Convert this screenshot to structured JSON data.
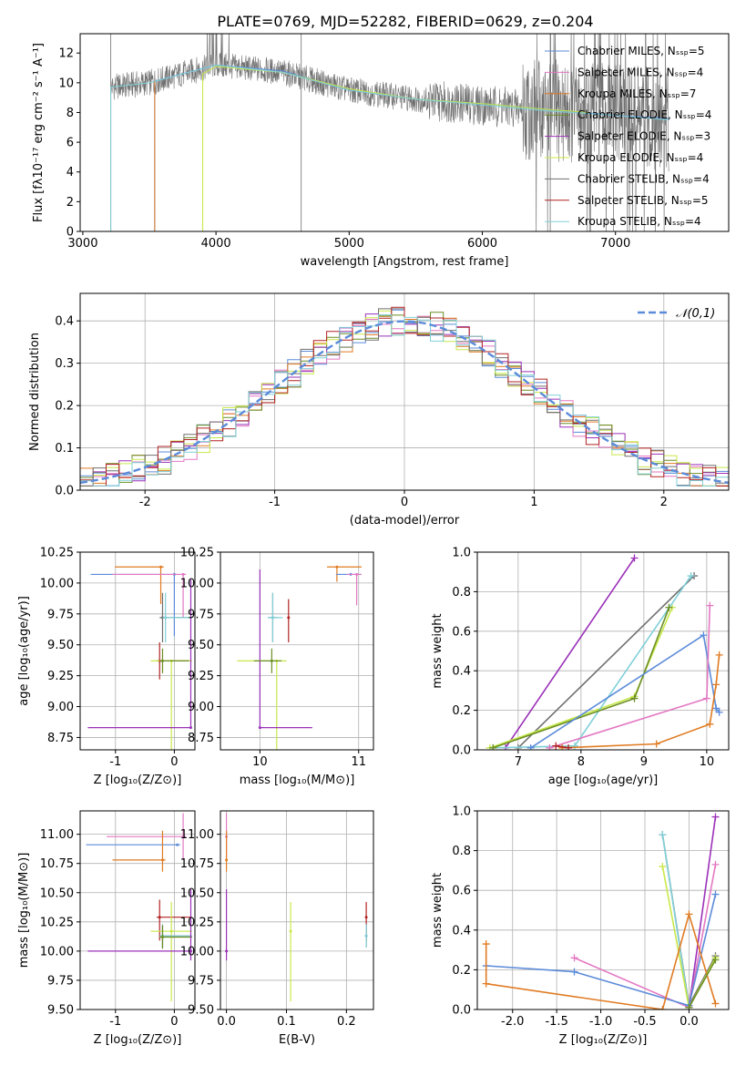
{
  "figure": {
    "title": "PLATE=0769, MJD=52282, FIBERID=0629, z=0.204"
  },
  "colors": {
    "Chabrier MILES": "#5b8bd9",
    "Salpeter MILES": "#e377c2",
    "Kroupa MILES": "#e07b22",
    "Chabrier ELODIE": "#6b8e23",
    "Salpeter ELODIE": "#9b30b8",
    "Kroupa ELODIE": "#c8e84a",
    "Chabrier STELIB": "#707070",
    "Salpeter STELIB": "#b22222",
    "Kroupa STELIB": "#80d0d8",
    "normal_fit": "#5b8bd9",
    "grid": "#b0b0b0"
  },
  "chart_data": [
    {
      "id": "spectrum",
      "type": "line",
      "xlabel": "wavelength [Angstrom, rest frame]",
      "ylabel": "Flux [fλ10⁻¹⁷ erg cm⁻² s⁻¹ A⁻¹]",
      "xlim": [
        2980,
        7850
      ],
      "ylim": [
        0,
        13.3
      ],
      "xticks": [
        3000,
        4000,
        5000,
        6000,
        7000
      ],
      "yticks": [
        0,
        2,
        4,
        6,
        8,
        10,
        12
      ],
      "grid": false,
      "legend_position": "top-right",
      "legend": [
        "Chabrier MILES, Nₛₛₚ=5",
        "Salpeter MILES, Nₛₛₚ=4",
        "Kroupa MILES, Nₛₛₚ=7",
        "Chabrier ELODIE, Nₛₛₚ=4",
        "Salpeter ELODIE, Nₛₛₚ=3",
        "Kroupa ELODIE, Nₛₛₚ=4",
        "Chabrier STELIB, Nₛₛₚ=4",
        "Salpeter STELIB, Nₛₛₚ=5",
        "Kroupa STELIB, Nₛₛₚ=4"
      ],
      "series": [
        {
          "name": "Chabrier MILES",
          "x": [
            3540,
            4000,
            4500,
            5000,
            5500,
            6000,
            6500,
            7000,
            7400
          ],
          "y": [
            10.1,
            11.2,
            10.8,
            9.5,
            8.9,
            8.6,
            8.2,
            7.8,
            7.6
          ]
        },
        {
          "name": "Kroupa ELODIE",
          "x": [
            3900,
            4000,
            4500,
            5000,
            5500,
            6000,
            6500,
            6800
          ],
          "y": [
            10.6,
            11.1,
            10.7,
            9.6,
            8.9,
            8.6,
            8.2,
            8.0
          ]
        },
        {
          "name": "Chabrier STELIB",
          "x": [
            3210,
            3500,
            4000,
            4500,
            5000,
            5500,
            6000,
            6500,
            7000,
            7400
          ],
          "y": [
            9.7,
            10.0,
            11.2,
            10.7,
            9.5,
            8.9,
            8.5,
            8.1,
            7.8,
            7.5
          ]
        }
      ]
    },
    {
      "id": "residuals",
      "type": "line",
      "xlabel": "(data-model)/error",
      "ylabel": "Normed distribution",
      "xlim": [
        -2.5,
        2.5
      ],
      "ylim": [
        0,
        0.465
      ],
      "xticks": [
        -2,
        -1,
        0,
        1,
        2
      ],
      "yticks": [
        0.0,
        0.1,
        0.2,
        0.3,
        0.4
      ],
      "grid": true,
      "legend_position": "top-right",
      "legend": [
        "𝒩(0,1)"
      ],
      "normal_curve": {
        "mean": 0,
        "sigma": 1
      }
    },
    {
      "id": "age_vs_Z",
      "type": "scatter",
      "xlabel": "Z [log₁₀(Z/Z⊙)]",
      "ylabel": "age  [log₁₀(age/yr)]",
      "xlim": [
        -1.6,
        0.35
      ],
      "ylim": [
        8.65,
        10.25
      ],
      "xticks": [
        -1,
        0
      ],
      "yticks": [
        8.75,
        9.0,
        9.25,
        9.5,
        9.75,
        10.0,
        10.25
      ],
      "grid": true,
      "points": [
        {
          "name": "Kroupa MILES",
          "x": -0.23,
          "y": 10.13,
          "xerr": [
            0.78,
            0.05
          ],
          "yerr": [
            0.3,
            0.0
          ]
        },
        {
          "name": "Chabrier MILES",
          "x": 0.0,
          "y": 10.07,
          "xerr": [
            1.42,
            0.05
          ],
          "yerr": [
            0.5,
            0.0
          ]
        },
        {
          "name": "Salpeter MILES",
          "x": 0.15,
          "y": 10.07,
          "xerr": [
            1.2,
            0.05
          ],
          "yerr": [
            0.35,
            0.0
          ]
        },
        {
          "name": "Chabrier STELIB",
          "x": -0.2,
          "y": 9.72,
          "xerr": [
            0.05,
            0.45
          ],
          "yerr": [
            0.2,
            0.2
          ]
        },
        {
          "name": "Kroupa STELIB",
          "x": -0.15,
          "y": 9.72,
          "xerr": [
            0.05,
            0.45
          ],
          "yerr": [
            0.2,
            0.2
          ]
        },
        {
          "name": "Salpeter STELIB",
          "x": -0.25,
          "y": 9.37,
          "xerr": [
            0.05,
            0.5
          ],
          "yerr": [
            0.15,
            0.15
          ]
        },
        {
          "name": "Kroupa ELODIE",
          "x": -0.05,
          "y": 9.37,
          "xerr": [
            0.35,
            0.35
          ],
          "yerr": [
            0.75,
            0.0
          ]
        },
        {
          "name": "Salpeter ELODIE",
          "x": 0.28,
          "y": 8.83,
          "xerr": [
            1.75,
            0.0
          ],
          "yerr": [
            0.0,
            1.2
          ]
        },
        {
          "name": "Chabrier ELODIE",
          "x": -0.2,
          "y": 9.37,
          "xerr": [
            0.05,
            0.45
          ],
          "yerr": [
            0.1,
            0.1
          ]
        }
      ]
    },
    {
      "id": "age_vs_mass",
      "type": "scatter",
      "xlabel": "mass [log₁₀(M/M⊙)]",
      "ylabel": "",
      "xlim": [
        9.6,
        11.15
      ],
      "ylim": [
        8.65,
        10.25
      ],
      "xticks": [
        10,
        11
      ],
      "yticks": [
        8.75,
        9.0,
        9.25,
        9.5,
        9.75,
        10.0,
        10.25
      ],
      "grid": true,
      "points": [
        {
          "name": "Kroupa MILES",
          "x": 10.78,
          "y": 10.13,
          "xerr": [
            0.1,
            0.25
          ],
          "yerr": [
            0.12,
            0.0
          ]
        },
        {
          "name": "Chabrier MILES",
          "x": 10.92,
          "y": 10.07,
          "xerr": [
            0.15,
            0.1
          ],
          "yerr": [
            0.0,
            0.0
          ]
        },
        {
          "name": "Salpeter MILES",
          "x": 10.98,
          "y": 10.07,
          "xerr": [
            0.1,
            0.05
          ],
          "yerr": [
            0.25,
            0.0
          ]
        },
        {
          "name": "Chabrier STELIB",
          "x": 10.13,
          "y": 9.72,
          "xerr": [
            0.05,
            0.05
          ],
          "yerr": [
            0.2,
            0.2
          ]
        },
        {
          "name": "Kroupa STELIB",
          "x": 10.13,
          "y": 9.72,
          "xerr": [
            0.05,
            0.1
          ],
          "yerr": [
            0.2,
            0.2
          ]
        },
        {
          "name": "Salpeter STELIB",
          "x": 10.29,
          "y": 9.72,
          "xerr": [
            0.0,
            0.0
          ],
          "yerr": [
            0.2,
            0.15
          ]
        },
        {
          "name": "Kroupa ELODIE",
          "x": 10.17,
          "y": 9.37,
          "xerr": [
            0.4,
            0.1
          ],
          "yerr": [
            0.75,
            0.0
          ]
        },
        {
          "name": "Salpeter ELODIE",
          "x": 10.0,
          "y": 8.83,
          "xerr": [
            0.0,
            0.53
          ],
          "yerr": [
            0.0,
            1.28
          ]
        },
        {
          "name": "Chabrier ELODIE",
          "x": 10.12,
          "y": 9.37,
          "xerr": [
            0.18,
            0.1
          ],
          "yerr": [
            0.1,
            0.1
          ]
        }
      ]
    },
    {
      "id": "weight_vs_age",
      "type": "line",
      "xlabel": "age  [log₁₀(age/yr)]",
      "ylabel": "mass weight",
      "xlim": [
        6.35,
        10.35
      ],
      "ylim": [
        0.0,
        1.0
      ],
      "xticks": [
        7,
        8,
        9,
        10
      ],
      "yticks": [
        0.0,
        0.2,
        0.4,
        0.6,
        0.8,
        1.0
      ],
      "grid": true,
      "series": [
        {
          "name": "Salpeter ELODIE",
          "x": [
            6.8,
            8.85
          ],
          "y": [
            0.01,
            0.97
          ]
        },
        {
          "name": "Chabrier STELIB",
          "x": [
            7.0,
            9.8
          ],
          "y": [
            0.01,
            0.88
          ]
        },
        {
          "name": "Kroupa ELODIE",
          "x": [
            6.55,
            8.85,
            9.45
          ],
          "y": [
            0.01,
            0.27,
            0.72
          ]
        },
        {
          "name": "Kroupa STELIB",
          "x": [
            6.6,
            7.9,
            9.75
          ],
          "y": [
            0.01,
            0.02,
            0.88
          ]
        },
        {
          "name": "Chabrier ELODIE",
          "x": [
            6.6,
            8.85,
            9.4
          ],
          "y": [
            0.01,
            0.26,
            0.72
          ]
        },
        {
          "name": "Chabrier MILES",
          "x": [
            7.2,
            9.95,
            10.15,
            10.2
          ],
          "y": [
            0.01,
            0.58,
            0.21,
            0.19
          ]
        },
        {
          "name": "Salpeter MILES",
          "x": [
            7.5,
            10.0,
            10.05
          ],
          "y": [
            0.01,
            0.26,
            0.73
          ]
        },
        {
          "name": "Kroupa MILES",
          "x": [
            7.7,
            9.2,
            10.05,
            10.15,
            10.2
          ],
          "y": [
            0.01,
            0.03,
            0.13,
            0.33,
            0.48
          ]
        },
        {
          "name": "Salpeter STELIB",
          "x": [
            7.6,
            7.8
          ],
          "y": [
            0.02,
            0.01
          ]
        }
      ]
    },
    {
      "id": "mass_vs_Z",
      "type": "scatter",
      "xlabel": "Z [log₁₀(Z/Z⊙)]",
      "ylabel": "mass [log₁₀(M/M⊙)]",
      "xlim": [
        -1.6,
        0.35
      ],
      "ylim": [
        9.5,
        11.2
      ],
      "xticks": [
        -1,
        0
      ],
      "yticks": [
        9.5,
        9.75,
        10.0,
        10.25,
        10.5,
        10.75,
        11.0
      ],
      "grid": true,
      "points": [
        {
          "name": "Salpeter MILES",
          "x": 0.15,
          "y": 10.98,
          "xerr": [
            1.3,
            0.05
          ],
          "yerr": [
            0.2,
            0.2
          ]
        },
        {
          "name": "Chabrier MILES",
          "x": 0.05,
          "y": 10.91,
          "xerr": [
            1.55,
            0.05
          ],
          "yerr": [
            0.0,
            0.0
          ]
        },
        {
          "name": "Kroupa MILES",
          "x": -0.2,
          "y": 10.78,
          "xerr": [
            0.85,
            0.05
          ],
          "yerr": [
            0.1,
            0.25
          ]
        },
        {
          "name": "Salpeter STELIB",
          "x": -0.25,
          "y": 10.29,
          "xerr": [
            0.05,
            0.55
          ],
          "yerr": [
            0.2,
            0.15
          ]
        },
        {
          "name": "Kroupa ELODIE",
          "x": -0.05,
          "y": 10.17,
          "xerr": [
            0.35,
            0.35
          ],
          "yerr": [
            0.6,
            0.25
          ]
        },
        {
          "name": "Chabrier STELIB",
          "x": -0.2,
          "y": 10.13,
          "xerr": [
            0.05,
            0.5
          ],
          "yerr": [
            0.1,
            0.1
          ]
        },
        {
          "name": "Kroupa STELIB",
          "x": -0.2,
          "y": 10.13,
          "xerr": [
            0.05,
            0.5
          ],
          "yerr": [
            0.1,
            0.1
          ]
        },
        {
          "name": "Chabrier ELODIE",
          "x": -0.2,
          "y": 10.12,
          "xerr": [
            0.05,
            0.5
          ],
          "yerr": [
            0.1,
            0.1
          ]
        },
        {
          "name": "Salpeter ELODIE",
          "x": 0.28,
          "y": 10.0,
          "xerr": [
            1.75,
            0.0
          ],
          "yerr": [
            0.08,
            0.53
          ]
        }
      ]
    },
    {
      "id": "mass_vs_EBV",
      "type": "scatter",
      "xlabel": "E(B-V)",
      "ylabel": "",
      "xlim": [
        -0.01,
        0.245
      ],
      "ylim": [
        9.5,
        11.2
      ],
      "xticks": [
        0.0,
        0.1,
        0.2
      ],
      "yticks": [
        9.5,
        9.75,
        10.0,
        10.25,
        10.5,
        10.75,
        11.0
      ],
      "grid": true,
      "points": [
        {
          "name": "Salpeter MILES",
          "x": 0.0,
          "y": 10.98,
          "yerr": [
            0.2,
            0.2
          ]
        },
        {
          "name": "Kroupa MILES",
          "x": 0.0,
          "y": 10.78,
          "yerr": [
            0.1,
            0.25
          ]
        },
        {
          "name": "Salpeter ELODIE",
          "x": 0.0,
          "y": 10.0,
          "yerr": [
            0.08,
            0.53
          ]
        },
        {
          "name": "Kroupa ELODIE",
          "x": 0.107,
          "y": 10.17,
          "yerr": [
            0.6,
            0.25
          ]
        },
        {
          "name": "Salpeter STELIB",
          "x": 0.233,
          "y": 10.29,
          "yerr": [
            0.2,
            0.13
          ]
        },
        {
          "name": "Chabrier STELIB",
          "x": 0.233,
          "y": 10.13,
          "yerr": [
            0.1,
            0.1
          ]
        },
        {
          "name": "Kroupa STELIB",
          "x": 0.233,
          "y": 10.13,
          "yerr": [
            0.1,
            0.1
          ]
        }
      ]
    },
    {
      "id": "weight_vs_Z",
      "type": "line",
      "xlabel": "Z [log₁₀(Z/Z⊙)]",
      "ylabel": "mass weight",
      "xlim": [
        -2.4,
        0.45
      ],
      "ylim": [
        0.0,
        1.0
      ],
      "xticks": [
        -2.0,
        -1.5,
        -1.0,
        -0.5,
        0.0
      ],
      "yticks": [
        0.0,
        0.2,
        0.4,
        0.6,
        0.8,
        1.0
      ],
      "grid": true,
      "series": [
        {
          "name": "Chabrier STELIB",
          "x": [
            -0.3,
            0.0,
            0.3
          ],
          "y": [
            0.88,
            0.02,
            0.27
          ]
        },
        {
          "name": "Kroupa STELIB",
          "x": [
            -0.3,
            0.0
          ],
          "y": [
            0.88,
            0.01
          ]
        },
        {
          "name": "Kroupa ELODIE",
          "x": [
            -0.3,
            0.0,
            0.3
          ],
          "y": [
            0.72,
            0.01,
            0.26
          ]
        },
        {
          "name": "Salpeter ELODIE",
          "x": [
            0.0,
            0.3
          ],
          "y": [
            0.01,
            0.97
          ]
        },
        {
          "name": "Salpeter MILES",
          "x": [
            -1.3,
            0.0,
            0.3
          ],
          "y": [
            0.26,
            0.01,
            0.73
          ]
        },
        {
          "name": "Chabrier MILES",
          "x": [
            -2.3,
            -1.3,
            0.0,
            0.3
          ],
          "y": [
            0.22,
            0.19,
            0.02,
            0.58
          ]
        },
        {
          "name": "Kroupa MILES",
          "x": [
            -2.3,
            -2.3,
            -0.3,
            0.0,
            0.3
          ],
          "y": [
            0.33,
            0.13,
            0.0,
            0.48,
            0.03
          ]
        },
        {
          "name": "Chabrier ELODIE",
          "x": [
            0.0,
            0.3
          ],
          "y": [
            0.01,
            0.25
          ]
        }
      ]
    }
  ]
}
